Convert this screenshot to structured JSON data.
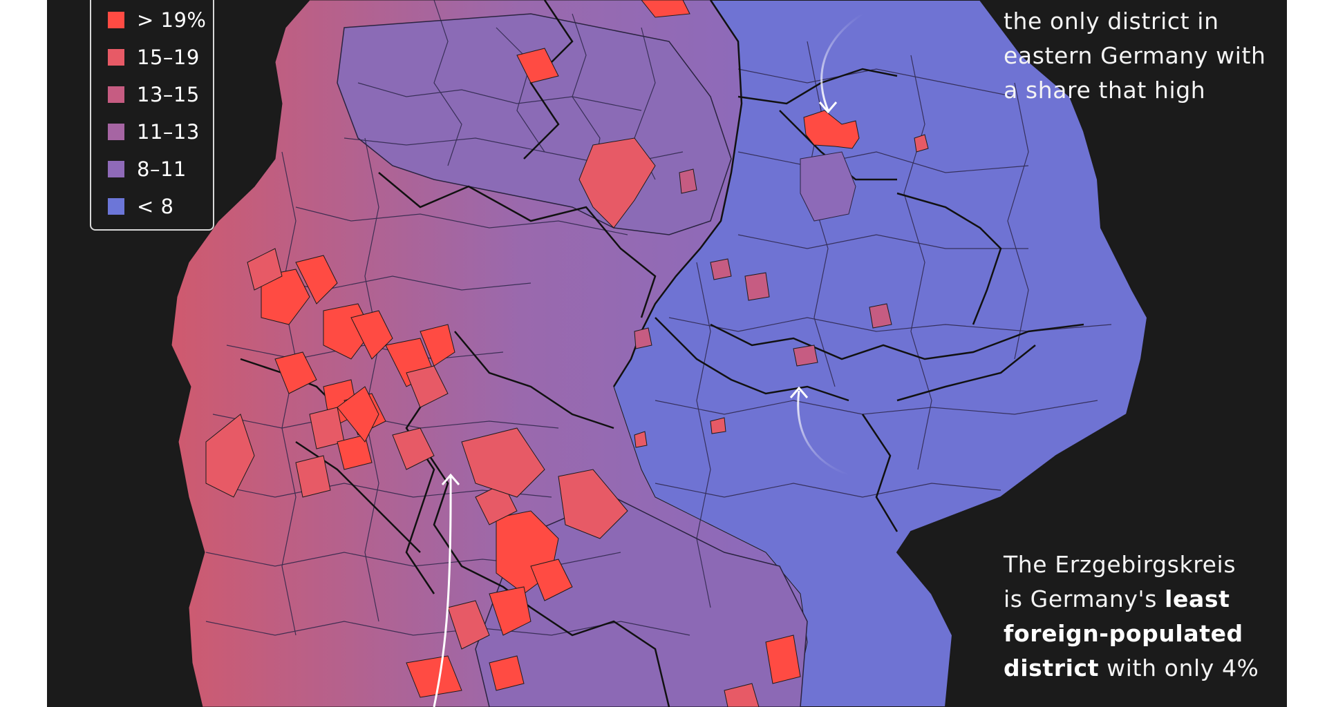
{
  "legend": {
    "items": [
      {
        "label": "> 19%",
        "color": "#ff4b43"
      },
      {
        "label": "15–19",
        "color": "#e75a66"
      },
      {
        "label": "13–15",
        "color": "#c65c82"
      },
      {
        "label": "11–13",
        "color": "#a665a3"
      },
      {
        "label": "8–11",
        "color": "#8f6ab8"
      },
      {
        "label": "< 8",
        "color": "#6c76d8"
      }
    ]
  },
  "annotations": {
    "berlin": {
      "lines": [
        "the only district in",
        "eastern Germany with",
        "a share that high"
      ]
    },
    "erzgebirge": {
      "line1": "The Erzgebirgskreis",
      "line2_prefix": "is Germany's ",
      "line2_bold": "least",
      "line3_bold": "foreign-populated",
      "line4_bold": "district",
      "line4_suffix": " with only 4%"
    }
  },
  "colors": {
    "background": "#1b1b1b",
    "border_fine": "#2a2340",
    "border_state": "#111111",
    "arrow": "#ffffff"
  }
}
